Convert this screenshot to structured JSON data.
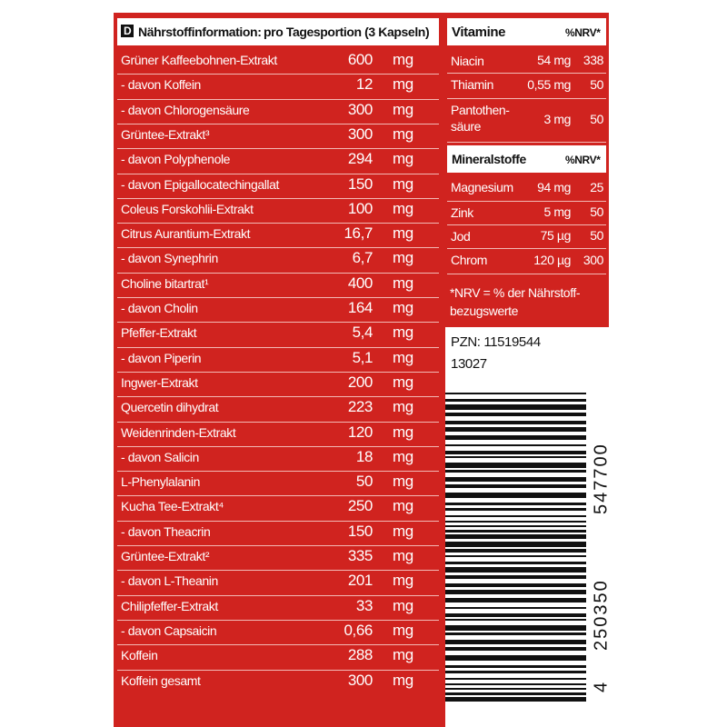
{
  "left": {
    "badge": "D",
    "header_label": "Nährstoffinformation:",
    "header_portion": "pro Tagesportion (3 Kapseln)",
    "rows": [
      [
        "Grüner Kaffeebohnen-Extrakt",
        "600",
        "mg"
      ],
      [
        "- davon Koffein",
        "12",
        "mg"
      ],
      [
        "- davon Chlorogensäure",
        "300",
        "mg"
      ],
      [
        "Grüntee-Extrakt³",
        "300",
        "mg"
      ],
      [
        "- davon Polyphenole",
        "294",
        "mg"
      ],
      [
        "- davon Epigallocatechingallat",
        "150",
        "mg"
      ],
      [
        "Coleus Forskohlii-Extrakt",
        "100",
        "mg"
      ],
      [
        "Citrus Aurantium-Extrakt",
        "16,7",
        "mg"
      ],
      [
        "- davon Synephrin",
        "6,7",
        "mg"
      ],
      [
        "Choline bitartrat¹",
        "400",
        "mg"
      ],
      [
        "- davon Cholin",
        "164",
        "mg"
      ],
      [
        "Pfeffer-Extrakt",
        "5,4",
        "mg"
      ],
      [
        "- davon Piperin",
        "5,1",
        "mg"
      ],
      [
        "Ingwer-Extrakt",
        "200",
        "mg"
      ],
      [
        "Quercetin dihydrat",
        "223",
        "mg"
      ],
      [
        "Weidenrinden-Extrakt",
        "120",
        "mg"
      ],
      [
        "- davon Salicin",
        "18",
        "mg"
      ],
      [
        "L-Phenylalanin",
        "50",
        "mg"
      ],
      [
        "Kucha Tee-Extrakt⁴",
        "250",
        "mg"
      ],
      [
        "- davon Theacrin",
        "150",
        "mg"
      ],
      [
        "Grüntee-Extrakt²",
        "335",
        "mg"
      ],
      [
        "- davon L-Theanin",
        "201",
        "mg"
      ],
      [
        "Chilipfeffer-Extrakt",
        "33",
        "mg"
      ],
      [
        "- davon Capsaicin",
        "0,66",
        "mg"
      ],
      [
        "Koffein",
        "288",
        "mg"
      ],
      [
        "Koffein gesamt",
        "300",
        "mg"
      ]
    ]
  },
  "vitamins": {
    "title": "Vitamine",
    "nrv": "%NRV*",
    "rows": [
      [
        "Niacin",
        "54 mg",
        "338"
      ],
      [
        "Thiamin",
        "0,55 mg",
        "50"
      ],
      [
        "Pantothen-säure",
        "3 mg",
        "50"
      ]
    ]
  },
  "minerals": {
    "title": "Mineralstoffe",
    "nrv": "%NRV*",
    "rows": [
      [
        "Magnesium",
        "94 mg",
        "25"
      ],
      [
        "Zink",
        "5 mg",
        "50"
      ],
      [
        "Jod",
        "75 µg",
        "50"
      ],
      [
        "Chrom",
        "120 µg",
        "300"
      ]
    ]
  },
  "footnote": "*NRV = % der Nährstoff-bezugswerte",
  "pzn": "PZN: 11519544",
  "code": "13027",
  "barcode": {
    "first": "4",
    "group1": "250350",
    "group2": "547700"
  }
}
